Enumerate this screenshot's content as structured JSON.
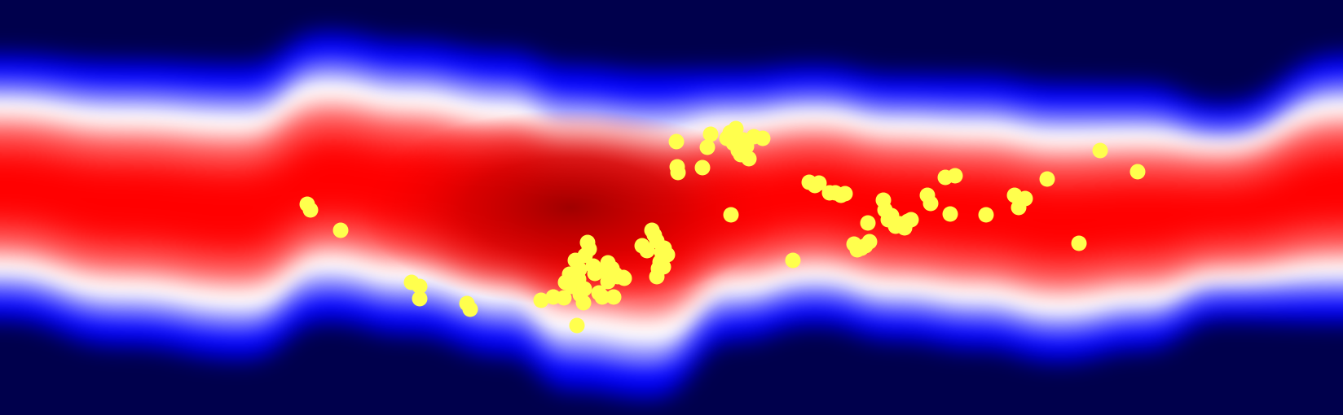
{
  "chart_data": {
    "type": "heatmap",
    "title": "",
    "xlabel": "",
    "ylabel": "",
    "grid": false,
    "legend": "none",
    "colormap": {
      "name": "seismic",
      "stops": [
        "#00004c",
        "#0000ff",
        "#ffffff",
        "#ff0000",
        "#800000"
      ]
    },
    "density_band": {
      "x": [
        0,
        150,
        300,
        400,
        500,
        620,
        700,
        800,
        900,
        1000,
        1100,
        1200,
        1300,
        1400,
        1500,
        1648
      ],
      "top": [
        95,
        105,
        110,
        70,
        82,
        95,
        115,
        122,
        115,
        108,
        120,
        122,
        132,
        132,
        150,
        95
      ],
      "bottom": [
        365,
        395,
        410,
        365,
        380,
        405,
        445,
        455,
        390,
        372,
        390,
        400,
        415,
        402,
        370,
        368
      ],
      "peak_x": 700,
      "peak_value": 1.0
    },
    "series": [
      {
        "marker_color": "#ffff4d",
        "points": [
          [
            377,
            251
          ],
          [
            381,
            258
          ],
          [
            418,
            283
          ],
          [
            505,
            347
          ],
          [
            515,
            352
          ],
          [
            515,
            367
          ],
          [
            573,
            373
          ],
          [
            577,
            380
          ],
          [
            664,
            369
          ],
          [
            679,
            365
          ],
          [
            692,
            366
          ],
          [
            694,
            347
          ],
          [
            699,
            337
          ],
          [
            702,
            352
          ],
          [
            706,
            320
          ],
          [
            710,
            343
          ],
          [
            711,
            331
          ],
          [
            712,
            362
          ],
          [
            716,
            372
          ],
          [
            717,
            355
          ],
          [
            718,
            314
          ],
          [
            721,
            298
          ],
          [
            723,
            306
          ],
          [
            728,
            327
          ],
          [
            730,
            336
          ],
          [
            735,
            360
          ],
          [
            739,
            365
          ],
          [
            742,
            333
          ],
          [
            746,
            346
          ],
          [
            748,
            330
          ],
          [
            753,
            365
          ],
          [
            758,
            340
          ],
          [
            766,
            342
          ],
          [
            708,
            400
          ],
          [
            746,
            323
          ],
          [
            751,
            330
          ],
          [
            755,
            337
          ],
          [
            765,
            341
          ],
          [
            788,
            302
          ],
          [
            794,
            308
          ],
          [
            800,
            283
          ],
          [
            803,
            289
          ],
          [
            806,
            296
          ],
          [
            810,
            322
          ],
          [
            812,
            310
          ],
          [
            815,
            305
          ],
          [
            806,
            340
          ],
          [
            808,
            330
          ],
          [
            814,
            328
          ],
          [
            819,
            313
          ],
          [
            830,
            174
          ],
          [
            831,
            205
          ],
          [
            832,
            212
          ],
          [
            862,
            206
          ],
          [
            868,
            181
          ],
          [
            872,
            165
          ],
          [
            892,
            170
          ],
          [
            896,
            163
          ],
          [
            900,
            176
          ],
          [
            903,
            158
          ],
          [
            906,
            185
          ],
          [
            909,
            190
          ],
          [
            912,
            172
          ],
          [
            916,
            180
          ],
          [
            919,
            195
          ],
          [
            925,
            168
          ],
          [
            936,
            170
          ],
          [
            897,
            264
          ],
          [
            973,
            320
          ],
          [
            993,
            224
          ],
          [
            1000,
            228
          ],
          [
            1005,
            225
          ],
          [
            1018,
            237
          ],
          [
            1025,
            237
          ],
          [
            1032,
            240
          ],
          [
            1037,
            238
          ],
          [
            1048,
            300
          ],
          [
            1052,
            307
          ],
          [
            1057,
            305
          ],
          [
            1062,
            302
          ],
          [
            1067,
            297
          ],
          [
            1065,
            274
          ],
          [
            1084,
            246
          ],
          [
            1086,
            258
          ],
          [
            1090,
            270
          ],
          [
            1094,
            265
          ],
          [
            1099,
            278
          ],
          [
            1104,
            275
          ],
          [
            1110,
            280
          ],
          [
            1114,
            272
          ],
          [
            1118,
            270
          ],
          [
            1138,
            240
          ],
          [
            1142,
            250
          ],
          [
            1160,
            218
          ],
          [
            1172,
            216
          ],
          [
            1166,
            263
          ],
          [
            1210,
            264
          ],
          [
            1245,
            240
          ],
          [
            1250,
            255
          ],
          [
            1258,
            244
          ],
          [
            1285,
            220
          ],
          [
            1350,
            185
          ],
          [
            1324,
            299
          ],
          [
            1396,
            211
          ]
        ]
      }
    ]
  }
}
